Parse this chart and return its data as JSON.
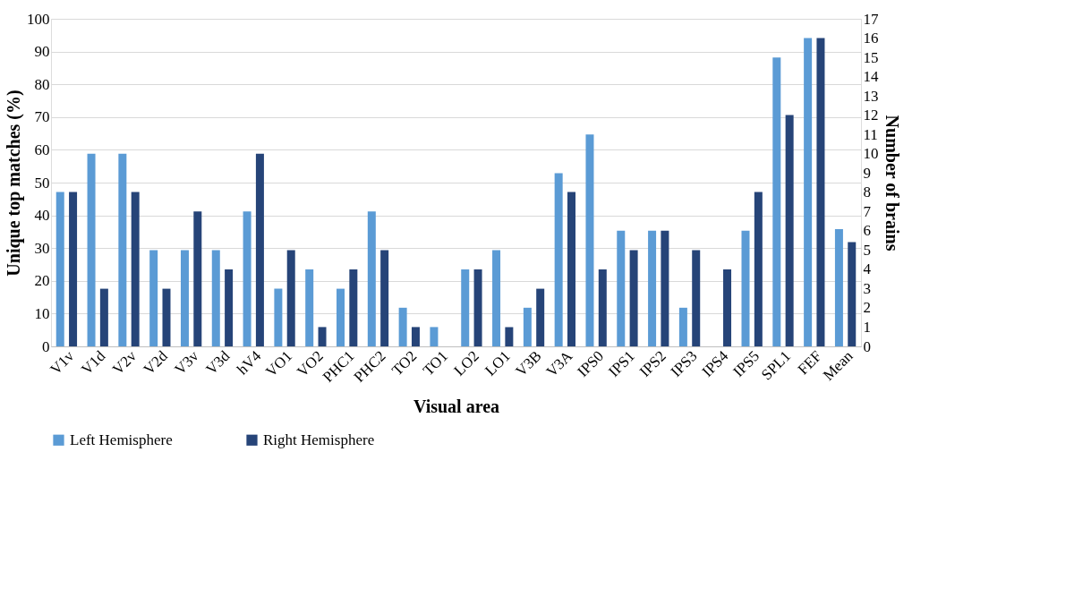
{
  "chart_data": {
    "type": "bar",
    "xlabel": "Visual area",
    "ylabel": "Unique top matches (%)",
    "y2label": "Number of brains",
    "categories": [
      "V1v",
      "V1d",
      "V2v",
      "V2d",
      "V3v",
      "V3d",
      "hV4",
      "VO1",
      "VO2",
      "PHC1",
      "PHC2",
      "TO2",
      "TO1",
      "LO2",
      "LO1",
      "V3B",
      "V3A",
      "IPS0",
      "IPS1",
      "IPS2",
      "IPS3",
      "IPS4",
      "IPS5",
      "SPL1",
      "FEF",
      "Mean"
    ],
    "series": [
      {
        "name": "Left Hemisphere",
        "color": "#5b9bd5",
        "values": [
          47.1,
          58.8,
          58.8,
          29.4,
          29.4,
          29.4,
          41.2,
          17.6,
          23.5,
          17.6,
          41.2,
          11.8,
          5.9,
          23.5,
          29.4,
          11.8,
          52.9,
          64.7,
          35.3,
          35.3,
          11.8,
          0,
          35.3,
          88.2,
          94.1,
          35.8
        ]
      },
      {
        "name": "Right Hemisphere",
        "color": "#264478",
        "values": [
          47.1,
          17.6,
          47.1,
          17.6,
          41.2,
          23.5,
          58.8,
          29.4,
          5.9,
          23.5,
          29.4,
          5.9,
          0,
          23.5,
          5.9,
          17.6,
          47.1,
          23.5,
          29.4,
          35.3,
          29.4,
          23.5,
          47.1,
          70.6,
          94.1,
          31.8
        ]
      }
    ],
    "ylim": [
      0,
      100
    ],
    "yticks": [
      0,
      10,
      20,
      30,
      40,
      50,
      60,
      70,
      80,
      90,
      100
    ],
    "y2lim": [
      0,
      17
    ],
    "y2ticks": [
      0,
      1,
      2,
      3,
      4,
      5,
      6,
      7,
      8,
      9,
      10,
      11,
      12,
      13,
      14,
      15,
      16,
      17
    ],
    "grid": "y",
    "legend": "bottom"
  }
}
